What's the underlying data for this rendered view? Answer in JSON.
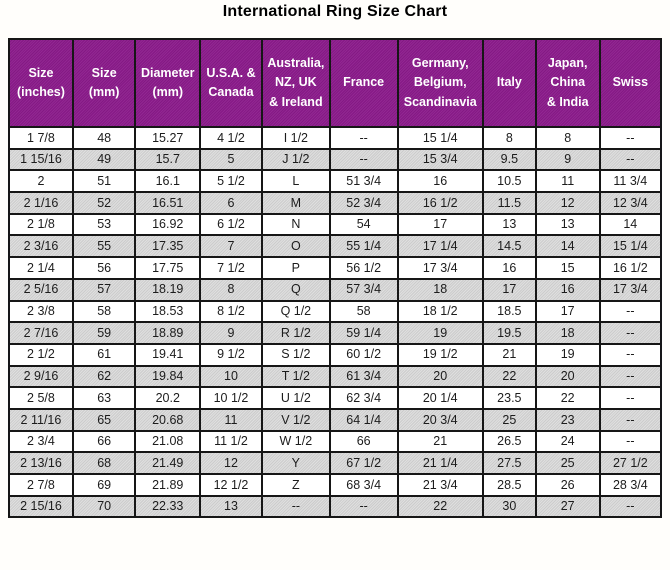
{
  "title": "International Ring Size Chart",
  "chart_data": {
    "type": "table",
    "title": "International Ring Size Chart",
    "columns": [
      "Size (inches)",
      "Size (mm)",
      "Diameter (mm)",
      "U.S.A. & Canada",
      "Australia, NZ, UK & Ireland",
      "France",
      "Germany, Belgium, Scandinavia",
      "Italy",
      "Japan, China & India",
      "Swiss"
    ],
    "header_lines": [
      [
        "Size",
        "(inches)"
      ],
      [
        "Size",
        "(mm)"
      ],
      [
        "Diameter",
        "(mm)"
      ],
      [
        "U.S.A. &",
        "Canada"
      ],
      [
        "Australia,",
        "NZ, UK",
        "& Ireland"
      ],
      [
        "France"
      ],
      [
        "Germany,",
        "Belgium,",
        "Scandinavia"
      ],
      [
        "Italy"
      ],
      [
        "Japan,",
        "China",
        "& India"
      ],
      [
        "Swiss"
      ]
    ],
    "rows": [
      [
        "1 7/8",
        "48",
        "15.27",
        "4 1/2",
        "I 1/2",
        "--",
        "15 1/4",
        "8",
        "8",
        "--"
      ],
      [
        "1 15/16",
        "49",
        "15.7",
        "5",
        "J 1/2",
        "--",
        "15 3/4",
        "9.5",
        "9",
        "--"
      ],
      [
        "2",
        "51",
        "16.1",
        "5 1/2",
        "L",
        "51 3/4",
        "16",
        "10.5",
        "11",
        "11 3/4"
      ],
      [
        "2 1/16",
        "52",
        "16.51",
        "6",
        "M",
        "52 3/4",
        "16 1/2",
        "11.5",
        "12",
        "12 3/4"
      ],
      [
        "2 1/8",
        "53",
        "16.92",
        "6 1/2",
        "N",
        "54",
        "17",
        "13",
        "13",
        "14"
      ],
      [
        "2 3/16",
        "55",
        "17.35",
        "7",
        "O",
        "55 1/4",
        "17 1/4",
        "14.5",
        "14",
        "15 1/4"
      ],
      [
        "2 1/4",
        "56",
        "17.75",
        "7 1/2",
        "P",
        "56 1/2",
        "17 3/4",
        "16",
        "15",
        "16 1/2"
      ],
      [
        "2 5/16",
        "57",
        "18.19",
        "8",
        "Q",
        "57 3/4",
        "18",
        "17",
        "16",
        "17 3/4"
      ],
      [
        "2 3/8",
        "58",
        "18.53",
        "8 1/2",
        "Q 1/2",
        "58",
        "18 1/2",
        "18.5",
        "17",
        "--"
      ],
      [
        "2 7/16",
        "59",
        "18.89",
        "9",
        "R 1/2",
        "59 1/4",
        "19",
        "19.5",
        "18",
        "--"
      ],
      [
        "2 1/2",
        "61",
        "19.41",
        "9 1/2",
        "S 1/2",
        "60 1/2",
        "19 1/2",
        "21",
        "19",
        "--"
      ],
      [
        "2 9/16",
        "62",
        "19.84",
        "10",
        "T 1/2",
        "61 3/4",
        "20",
        "22",
        "20",
        "--"
      ],
      [
        "2 5/8",
        "63",
        "20.2",
        "10 1/2",
        "U 1/2",
        "62 3/4",
        "20 1/4",
        "23.5",
        "22",
        "--"
      ],
      [
        "2 11/16",
        "65",
        "20.68",
        "11",
        "V 1/2",
        "64 1/4",
        "20 3/4",
        "25",
        "23",
        "--"
      ],
      [
        "2 3/4",
        "66",
        "21.08",
        "11 1/2",
        "W 1/2",
        "66",
        "21",
        "26.5",
        "24",
        "--"
      ],
      [
        "2 13/16",
        "68",
        "21.49",
        "12",
        "Y",
        "67 1/2",
        "21 1/4",
        "27.5",
        "25",
        "27 1/2"
      ],
      [
        "2 7/8",
        "69",
        "21.89",
        "12 1/2",
        "Z",
        "68 3/4",
        "21 3/4",
        "28.5",
        "26",
        "28 3/4"
      ],
      [
        "2 15/16",
        "70",
        "22.33",
        "13",
        "--",
        "--",
        "22",
        "30",
        "27",
        "--"
      ]
    ],
    "layout": {
      "striped": "even rows gray, odd rows white",
      "grid": true,
      "legend_position": "none"
    }
  },
  "colors": {
    "header_bg": "#8B1A8B",
    "header_text": "#FFFFFF",
    "stripe_bg": "#D4D4D4",
    "row_bg": "#FFFFFF",
    "border": "#161616",
    "title_text": "#000000",
    "cell_text": "#1C1C1C"
  }
}
